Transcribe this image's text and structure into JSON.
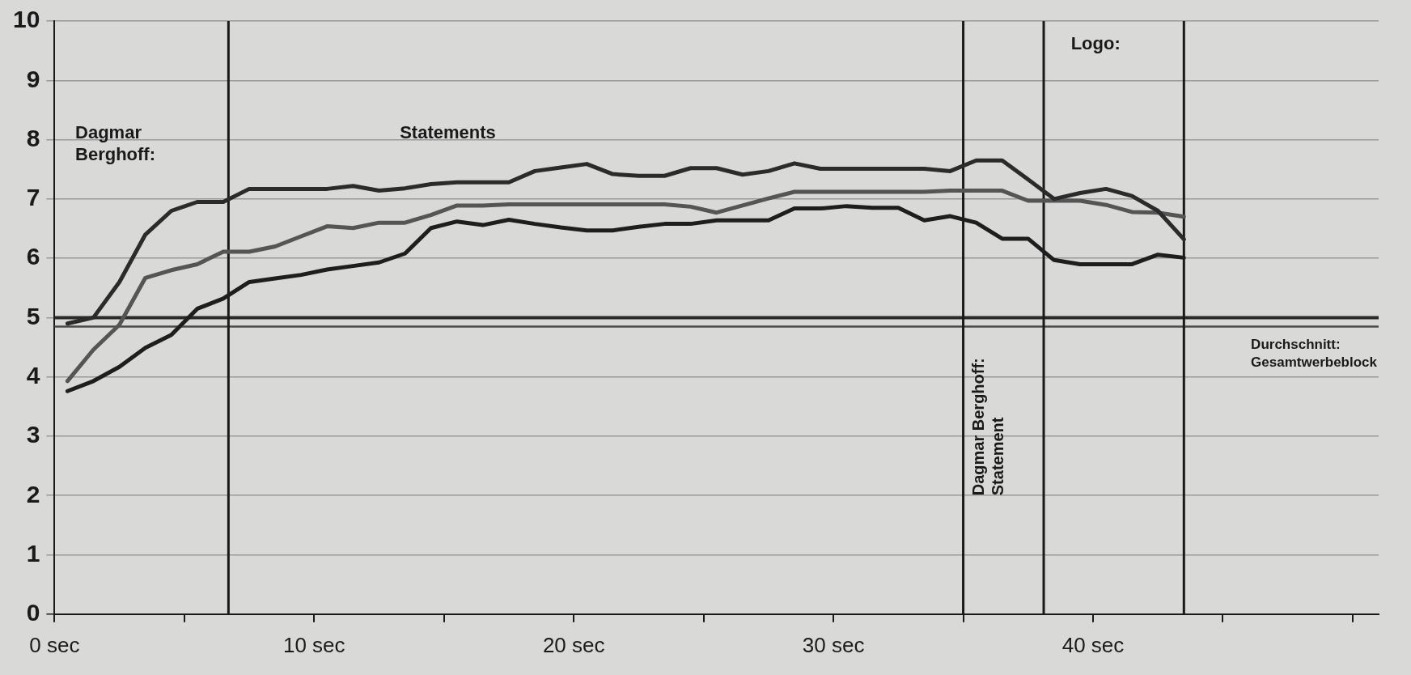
{
  "chart_data": {
    "type": "line",
    "x": [
      0.5,
      1.5,
      2.5,
      3.5,
      4.5,
      5.5,
      6.5,
      7.5,
      8.5,
      9.5,
      10.5,
      11.5,
      12.5,
      13.5,
      14.5,
      15.5,
      16.5,
      17.5,
      18.5,
      19.5,
      20.5,
      21.5,
      22.5,
      23.5,
      24.5,
      25.5,
      26.5,
      27.5,
      28.5,
      29.5,
      30.5,
      31.5,
      32.5,
      33.5,
      34.5,
      35.5,
      36.5,
      37.5,
      38.5,
      39.5,
      40.5,
      41.5,
      42.5,
      43.5
    ],
    "series": [
      {
        "color": "#2b2b2b",
        "values": [
          4.9,
          5.0,
          5.6,
          6.4,
          6.8,
          6.95,
          6.95,
          7.17,
          7.17,
          7.17,
          7.17,
          7.22,
          7.14,
          7.18,
          7.25,
          7.28,
          7.28,
          7.28,
          7.47,
          7.53,
          7.59,
          7.42,
          7.39,
          7.39,
          7.52,
          7.52,
          7.41,
          7.47,
          7.6,
          7.51,
          7.51,
          7.51,
          7.51,
          7.51,
          7.47,
          7.65,
          7.65,
          7.33,
          7.0,
          7.1,
          7.17,
          7.05,
          6.8,
          6.32
        ]
      },
      {
        "color": "#555555",
        "values": [
          3.93,
          4.46,
          4.88,
          5.67,
          5.8,
          5.9,
          6.11,
          6.11,
          6.2,
          6.37,
          6.54,
          6.51,
          6.6,
          6.6,
          6.73,
          6.89,
          6.89,
          6.91,
          6.91,
          6.91,
          6.91,
          6.91,
          6.91,
          6.91,
          6.87,
          6.77,
          6.89,
          7.01,
          7.12,
          7.12,
          7.12,
          7.12,
          7.12,
          7.12,
          7.14,
          7.14,
          7.14,
          6.97,
          6.97,
          6.97,
          6.9,
          6.78,
          6.77,
          6.7
        ]
      },
      {
        "color": "#1e1e1e",
        "values": [
          3.76,
          3.93,
          4.17,
          4.49,
          4.71,
          5.15,
          5.32,
          5.6,
          5.66,
          5.72,
          5.81,
          5.87,
          5.93,
          6.08,
          6.51,
          6.62,
          6.56,
          6.65,
          6.58,
          6.52,
          6.47,
          6.47,
          6.53,
          6.58,
          6.58,
          6.64,
          6.64,
          6.64,
          6.84,
          6.84,
          6.88,
          6.85,
          6.85,
          6.64,
          6.71,
          6.6,
          6.33,
          6.33,
          5.97,
          5.9,
          5.9,
          5.9,
          6.06,
          6.01
        ]
      }
    ],
    "xlim": [
      0,
      51
    ],
    "xticks": [
      {
        "value": 0,
        "label": "0 sec"
      },
      {
        "value": 5,
        "label": null
      },
      {
        "value": 10,
        "label": "10 sec"
      },
      {
        "value": 15,
        "label": null
      },
      {
        "value": 20,
        "label": "20 sec"
      },
      {
        "value": 25,
        "label": null
      },
      {
        "value": 30,
        "label": "30 sec"
      },
      {
        "value": 35,
        "label": null
      },
      {
        "value": 40,
        "label": "40 sec"
      },
      {
        "value": 45,
        "label": null
      },
      {
        "value": 50,
        "label": null
      }
    ],
    "ylim": [
      0,
      10
    ],
    "yticks": [
      0,
      1,
      2,
      3,
      4,
      5,
      6,
      7,
      8,
      9,
      10
    ],
    "grid": "y",
    "legend": false,
    "marker": "none",
    "line_style": "solid",
    "ref_lines": [
      {
        "axis": "y",
        "value": 5,
        "color": "#2a2a2a"
      },
      {
        "axis": "y",
        "value": 4.85,
        "color": "#4a4a4a",
        "label": "Durchschnitt: Gesamtwerbeblock"
      },
      {
        "axis": "x",
        "value": 6.7,
        "color": "#1a1a1a"
      },
      {
        "axis": "x",
        "value": 35,
        "color": "#1a1a1a",
        "label": "Dagmar Berghoff: Statement"
      },
      {
        "axis": "x",
        "value": 38.1,
        "color": "#1a1a1a"
      },
      {
        "axis": "x",
        "value": 43.5,
        "color": "#1a1a1a"
      }
    ],
    "annotations": [
      "Dagmar Berghoff:",
      "Statements",
      "Logo:"
    ]
  }
}
